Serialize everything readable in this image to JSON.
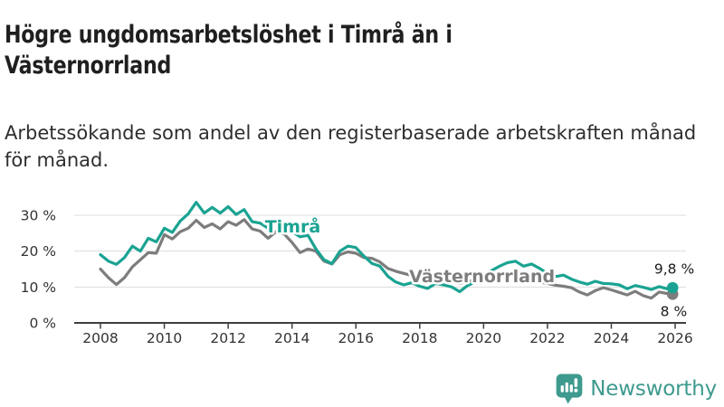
{
  "header": {
    "title": "Högre ungdomsarbetslöshet i Timrå än i Västernorrland",
    "subtitle": "Arbetssökande som andel av den registerbaserade arbetskraften månad för månad."
  },
  "footer": {
    "brand": "Newsworthy"
  },
  "colors": {
    "timra_teal": "#1aa392",
    "vasternorrland_gray": "#7d7d7d",
    "axis": "#3f3f3f",
    "grid": "#dcdcdc",
    "logo_teal": "#3e9a8e",
    "text_dark": "#1f1f1f"
  },
  "chart_data": {
    "type": "line",
    "title": "Högre ungdomsarbetslöshet i Timrå än i Västernorrland",
    "subtitle": "Arbetssökande som andel av den registerbaserade arbetskraften månad för månad.",
    "unit": "%",
    "grid": true,
    "legend": "inline-labels",
    "xlim": [
      2007.2,
      2026.35
    ],
    "ylim": [
      0,
      35
    ],
    "axis_color": "#3f3f3f",
    "grid_color": "#dcdcdc",
    "x_ticks": [
      {
        "v": 2008,
        "label": "2008"
      },
      {
        "v": 2010,
        "label": "2010"
      },
      {
        "v": 2012,
        "label": "2012"
      },
      {
        "v": 2014,
        "label": "2014"
      },
      {
        "v": 2016,
        "label": "2016"
      },
      {
        "v": 2018,
        "label": "2018"
      },
      {
        "v": 2020,
        "label": "2020"
      },
      {
        "v": 2022,
        "label": "2022"
      },
      {
        "v": 2024,
        "label": "2024"
      },
      {
        "v": 2026,
        "label": "2026"
      }
    ],
    "y_ticks": [
      {
        "v": 0,
        "label": "0 %"
      },
      {
        "v": 10,
        "label": "10 %"
      },
      {
        "v": 20,
        "label": "20 %"
      },
      {
        "v": 30,
        "label": "30 %"
      }
    ],
    "series": [
      {
        "name": "Timrå",
        "color": "#1aa392",
        "end_label": "9,8 %",
        "label_anchor": [
          2013.15,
          25.2
        ],
        "points": [
          [
            2008.0,
            19.0
          ],
          [
            2008.25,
            17.2
          ],
          [
            2008.5,
            16.3
          ],
          [
            2008.75,
            18.2
          ],
          [
            2009.0,
            21.4
          ],
          [
            2009.25,
            20.0
          ],
          [
            2009.5,
            23.6
          ],
          [
            2009.75,
            22.6
          ],
          [
            2010.0,
            26.4
          ],
          [
            2010.25,
            25.2
          ],
          [
            2010.5,
            28.4
          ],
          [
            2010.75,
            30.4
          ],
          [
            2011.0,
            33.6
          ],
          [
            2011.25,
            30.6
          ],
          [
            2011.5,
            32.2
          ],
          [
            2011.75,
            30.6
          ],
          [
            2012.0,
            32.4
          ],
          [
            2012.25,
            30.2
          ],
          [
            2012.5,
            31.6
          ],
          [
            2012.75,
            28.2
          ],
          [
            2013.0,
            27.8
          ],
          [
            2013.25,
            26.4
          ],
          [
            2013.5,
            28.2
          ],
          [
            2013.75,
            26.2
          ],
          [
            2014.0,
            25.4
          ],
          [
            2014.25,
            24.0
          ],
          [
            2014.5,
            24.4
          ],
          [
            2014.75,
            20.6
          ],
          [
            2015.0,
            17.6
          ],
          [
            2015.25,
            16.5
          ],
          [
            2015.5,
            20.0
          ],
          [
            2015.75,
            21.4
          ],
          [
            2016.0,
            21.0
          ],
          [
            2016.25,
            18.6
          ],
          [
            2016.5,
            16.6
          ],
          [
            2016.75,
            15.8
          ],
          [
            2017.0,
            13.0
          ],
          [
            2017.25,
            11.4
          ],
          [
            2017.5,
            10.6
          ],
          [
            2017.75,
            11.2
          ],
          [
            2018.0,
            10.2
          ],
          [
            2018.25,
            9.6
          ],
          [
            2018.5,
            11.0
          ],
          [
            2018.75,
            10.6
          ],
          [
            2019.0,
            10.0
          ],
          [
            2019.25,
            8.7
          ],
          [
            2019.5,
            10.4
          ],
          [
            2019.75,
            11.4
          ],
          [
            2020.0,
            12.2
          ],
          [
            2020.25,
            14.6
          ],
          [
            2020.5,
            15.8
          ],
          [
            2020.75,
            16.8
          ],
          [
            2021.0,
            17.2
          ],
          [
            2021.25,
            15.8
          ],
          [
            2021.5,
            16.4
          ],
          [
            2021.75,
            15.2
          ],
          [
            2022.0,
            13.8
          ],
          [
            2022.25,
            12.9
          ],
          [
            2022.5,
            13.3
          ],
          [
            2022.75,
            12.2
          ],
          [
            2023.0,
            11.4
          ],
          [
            2023.25,
            10.8
          ],
          [
            2023.5,
            11.6
          ],
          [
            2023.75,
            11.0
          ],
          [
            2024.0,
            10.9
          ],
          [
            2024.25,
            10.6
          ],
          [
            2024.5,
            9.5
          ],
          [
            2024.75,
            10.4
          ],
          [
            2025.0,
            9.9
          ],
          [
            2025.25,
            9.3
          ],
          [
            2025.5,
            10.1
          ],
          [
            2025.75,
            9.5
          ],
          [
            2025.92,
            9.8
          ]
        ]
      },
      {
        "name": "Västernorrland",
        "color": "#7d7d7d",
        "end_label": "8 %",
        "label_anchor": [
          2017.67,
          11.3
        ],
        "points": [
          [
            2008.0,
            15.0
          ],
          [
            2008.25,
            12.6
          ],
          [
            2008.5,
            10.7
          ],
          [
            2008.75,
            12.6
          ],
          [
            2009.0,
            15.6
          ],
          [
            2009.25,
            17.6
          ],
          [
            2009.5,
            19.6
          ],
          [
            2009.75,
            19.4
          ],
          [
            2010.0,
            24.6
          ],
          [
            2010.25,
            23.4
          ],
          [
            2010.5,
            25.4
          ],
          [
            2010.75,
            26.4
          ],
          [
            2011.0,
            28.6
          ],
          [
            2011.25,
            26.6
          ],
          [
            2011.5,
            27.6
          ],
          [
            2011.75,
            26.2
          ],
          [
            2012.0,
            28.2
          ],
          [
            2012.25,
            27.2
          ],
          [
            2012.5,
            28.8
          ],
          [
            2012.75,
            26.2
          ],
          [
            2013.0,
            25.6
          ],
          [
            2013.25,
            23.6
          ],
          [
            2013.5,
            25.4
          ],
          [
            2013.75,
            24.8
          ],
          [
            2014.0,
            22.4
          ],
          [
            2014.25,
            19.6
          ],
          [
            2014.5,
            20.6
          ],
          [
            2014.75,
            20.0
          ],
          [
            2015.0,
            17.2
          ],
          [
            2015.25,
            16.4
          ],
          [
            2015.5,
            19.0
          ],
          [
            2015.75,
            19.8
          ],
          [
            2016.0,
            19.4
          ],
          [
            2016.25,
            18.2
          ],
          [
            2016.5,
            18.0
          ],
          [
            2016.75,
            17.0
          ],
          [
            2017.0,
            15.2
          ],
          [
            2017.25,
            14.4
          ],
          [
            2017.5,
            13.8
          ],
          [
            2017.75,
            13.2
          ],
          [
            2018.0,
            12.4
          ],
          [
            2018.25,
            12.0
          ],
          [
            2018.5,
            12.6
          ],
          [
            2018.75,
            12.0
          ],
          [
            2019.0,
            11.6
          ],
          [
            2019.25,
            11.0
          ],
          [
            2019.5,
            11.6
          ],
          [
            2019.75,
            12.0
          ],
          [
            2020.0,
            12.6
          ],
          [
            2020.25,
            13.6
          ],
          [
            2020.5,
            13.8
          ],
          [
            2020.75,
            13.4
          ],
          [
            2021.0,
            13.0
          ],
          [
            2021.25,
            12.4
          ],
          [
            2021.5,
            12.0
          ],
          [
            2021.75,
            11.4
          ],
          [
            2022.0,
            11.0
          ],
          [
            2022.25,
            10.5
          ],
          [
            2022.5,
            10.2
          ],
          [
            2022.75,
            9.8
          ],
          [
            2023.0,
            8.6
          ],
          [
            2023.25,
            7.8
          ],
          [
            2023.5,
            9.0
          ],
          [
            2023.75,
            9.8
          ],
          [
            2024.0,
            9.2
          ],
          [
            2024.25,
            8.5
          ],
          [
            2024.5,
            7.8
          ],
          [
            2024.75,
            8.8
          ],
          [
            2025.0,
            7.6
          ],
          [
            2025.25,
            6.9
          ],
          [
            2025.5,
            8.6
          ],
          [
            2025.75,
            8.2
          ],
          [
            2025.92,
            8.0
          ]
        ]
      }
    ]
  }
}
